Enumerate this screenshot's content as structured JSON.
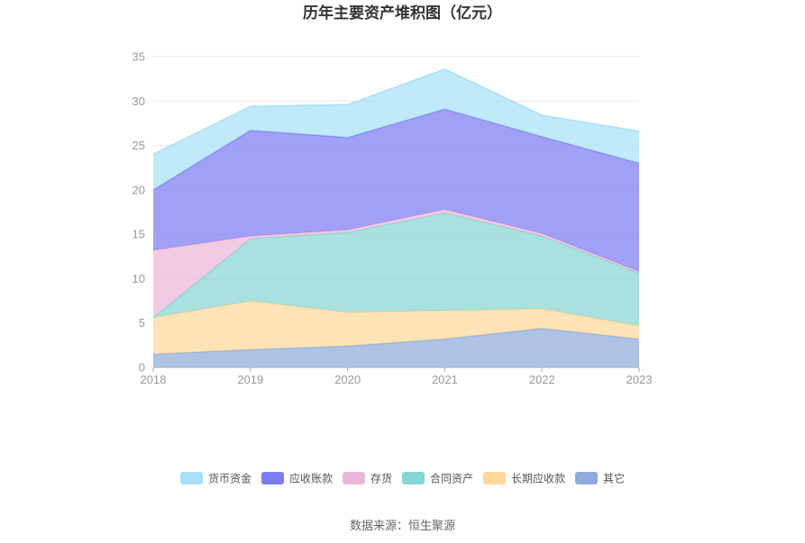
{
  "chart_data": {
    "type": "area",
    "stacked": true,
    "title": "历年主要资产堆积图（亿元）",
    "source": "数据来源：恒生聚源",
    "x": [
      "2018",
      "2019",
      "2020",
      "2021",
      "2022",
      "2023"
    ],
    "ylim": [
      0,
      35
    ],
    "yticks": [
      "0",
      "5",
      "10",
      "15",
      "20",
      "25",
      "30",
      "35"
    ],
    "grid": true,
    "legend_position": "bottom",
    "series": [
      {
        "name": "其它",
        "color": "#8faadc",
        "values": [
          1.5,
          2.0,
          2.4,
          3.2,
          4.4,
          3.2
        ]
      },
      {
        "name": "长期应收款",
        "color": "#fcd89a",
        "values": [
          4.1,
          5.5,
          3.8,
          3.2,
          2.2,
          1.5
        ]
      },
      {
        "name": "合同资产",
        "color": "#86d6d3",
        "values": [
          0.0,
          7.0,
          9.0,
          11.0,
          8.2,
          5.9
        ]
      },
      {
        "name": "存货",
        "color": "#ebb7d9",
        "values": [
          7.6,
          0.3,
          0.3,
          0.4,
          0.3,
          0.2
        ]
      },
      {
        "name": "应收账款",
        "color": "#7b7cf3",
        "values": [
          6.8,
          11.9,
          10.4,
          11.3,
          10.9,
          12.2
        ]
      },
      {
        "name": "货币资金",
        "color": "#a8e0f8",
        "values": [
          4.0,
          2.7,
          3.7,
          4.5,
          2.4,
          3.6
        ]
      }
    ],
    "legend_order": [
      "货币资金",
      "应收账款",
      "存货",
      "合同资产",
      "长期应收款",
      "其它"
    ]
  }
}
